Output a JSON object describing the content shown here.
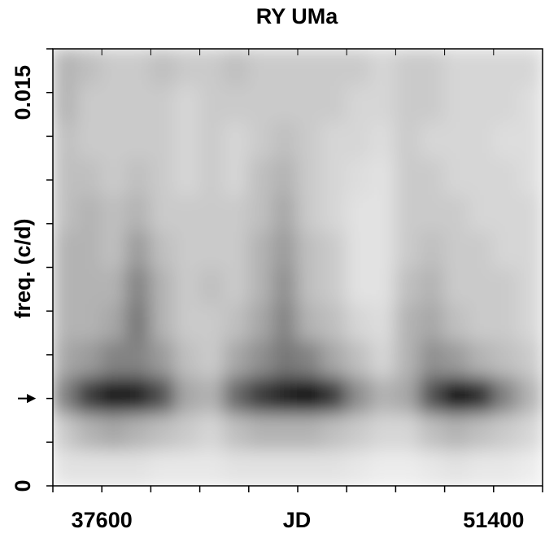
{
  "chart_data": {
    "type": "heatmap",
    "title": "RY UMa",
    "xlabel": "JD",
    "ylabel": "freq. (c/d)",
    "xlim": [
      35875,
      53125
    ],
    "ylim": [
      0,
      0.016667
    ],
    "xticks": [
      37600,
      51400
    ],
    "yticks": [
      0,
      0.015
    ],
    "xminor_ticks": [
      35875,
      37600,
      39325,
      41050,
      42775,
      44500,
      46225,
      47950,
      49675,
      51400,
      53125
    ],
    "yminor_ticks": [
      0,
      0.001667,
      0.003333,
      0.005,
      0.006667,
      0.008333,
      0.01,
      0.011667,
      0.013333,
      0.015,
      0.016667
    ],
    "arrow_y": 0.003333,
    "z": [
      [
        0.1,
        0.1,
        0.1,
        0.1,
        0.08,
        0.08,
        0.08,
        0.1,
        0.1,
        0.1,
        0.1,
        0.1,
        0.08,
        0.06,
        0.06,
        0.08,
        0.1,
        0.08,
        0.08,
        0.06
      ],
      [
        0.2,
        0.3,
        0.35,
        0.3,
        0.25,
        0.2,
        0.15,
        0.25,
        0.3,
        0.3,
        0.3,
        0.25,
        0.2,
        0.15,
        0.15,
        0.25,
        0.3,
        0.25,
        0.2,
        0.15
      ],
      [
        0.5,
        0.8,
        0.95,
        0.9,
        0.7,
        0.35,
        0.3,
        0.6,
        0.8,
        0.9,
        1.0,
        0.8,
        0.45,
        0.3,
        0.35,
        0.7,
        1.0,
        0.85,
        0.5,
        0.3
      ],
      [
        0.35,
        0.4,
        0.5,
        0.5,
        0.4,
        0.25,
        0.2,
        0.35,
        0.45,
        0.55,
        0.5,
        0.35,
        0.25,
        0.15,
        0.3,
        0.45,
        0.4,
        0.3,
        0.25,
        0.2
      ],
      [
        0.3,
        0.3,
        0.35,
        0.55,
        0.3,
        0.2,
        0.2,
        0.25,
        0.35,
        0.5,
        0.3,
        0.25,
        0.15,
        0.12,
        0.3,
        0.35,
        0.25,
        0.2,
        0.2,
        0.15
      ],
      [
        0.3,
        0.3,
        0.3,
        0.5,
        0.3,
        0.2,
        0.25,
        0.2,
        0.3,
        0.45,
        0.25,
        0.2,
        0.1,
        0.1,
        0.25,
        0.3,
        0.2,
        0.2,
        0.2,
        0.15
      ],
      [
        0.3,
        0.3,
        0.25,
        0.4,
        0.25,
        0.2,
        0.2,
        0.2,
        0.3,
        0.4,
        0.25,
        0.2,
        0.1,
        0.1,
        0.2,
        0.25,
        0.2,
        0.2,
        0.15,
        0.15
      ],
      [
        0.25,
        0.3,
        0.25,
        0.3,
        0.2,
        0.2,
        0.2,
        0.2,
        0.25,
        0.35,
        0.2,
        0.15,
        0.1,
        0.1,
        0.2,
        0.2,
        0.2,
        0.15,
        0.15,
        0.15
      ],
      [
        0.25,
        0.25,
        0.2,
        0.25,
        0.2,
        0.15,
        0.2,
        0.15,
        0.25,
        0.3,
        0.2,
        0.15,
        0.12,
        0.1,
        0.2,
        0.2,
        0.15,
        0.15,
        0.15,
        0.12
      ],
      [
        0.25,
        0.2,
        0.2,
        0.2,
        0.2,
        0.15,
        0.2,
        0.15,
        0.2,
        0.25,
        0.2,
        0.15,
        0.15,
        0.12,
        0.2,
        0.15,
        0.15,
        0.15,
        0.12,
        0.12
      ],
      [
        0.3,
        0.2,
        0.2,
        0.2,
        0.2,
        0.15,
        0.2,
        0.2,
        0.2,
        0.2,
        0.2,
        0.2,
        0.15,
        0.15,
        0.2,
        0.2,
        0.15,
        0.15,
        0.15,
        0.12
      ],
      [
        0.3,
        0.25,
        0.2,
        0.2,
        0.25,
        0.2,
        0.2,
        0.25,
        0.2,
        0.2,
        0.2,
        0.2,
        0.2,
        0.15,
        0.2,
        0.2,
        0.15,
        0.15,
        0.15,
        0.15
      ]
    ]
  }
}
